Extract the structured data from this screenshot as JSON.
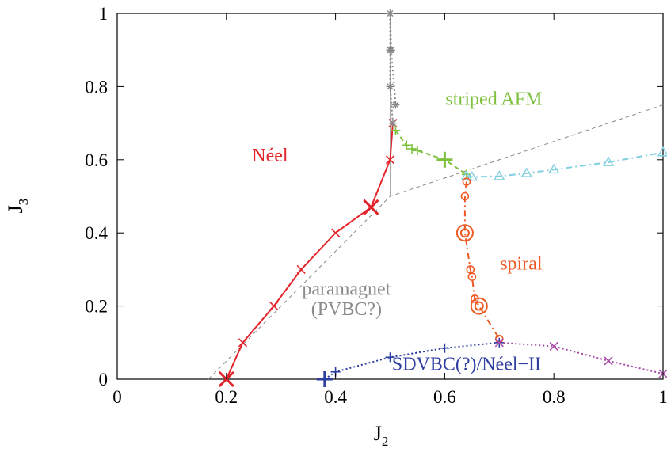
{
  "chart_data": {
    "type": "line",
    "title": "",
    "xlabel": "J",
    "xlabel_sub": "2",
    "ylabel": "J",
    "ylabel_sub": "3",
    "xlim": [
      0,
      1
    ],
    "ylim": [
      0,
      1
    ],
    "xticks": [
      "0",
      "0.2",
      "0.4",
      "0.6",
      "0.8",
      "1"
    ],
    "yticks": [
      "0",
      "0.2",
      "0.4",
      "0.6",
      "0.8",
      "1"
    ],
    "grid": false,
    "region_labels": [
      {
        "text": "Néel",
        "x": 0.28,
        "y": 0.595,
        "color": "#e3242b"
      },
      {
        "text": "striped AFM",
        "x": 0.69,
        "y": 0.75,
        "color": "#7ec13e"
      },
      {
        "text": "spiral",
        "x": 0.74,
        "y": 0.3,
        "color": "#ee5a24"
      },
      {
        "text": "paramagnet",
        "x": 0.42,
        "y": 0.23,
        "color": "#8a8a8a"
      },
      {
        "text": "(PVBC?)",
        "x": 0.42,
        "y": 0.175,
        "color": "#8a8a8a"
      },
      {
        "text": "SDVBC(?)/Néel−II",
        "x": 0.64,
        "y": 0.025,
        "color": "#2e3fa0"
      }
    ],
    "classical_lines": [
      {
        "name": "classical-boundary",
        "x": [
          0.167,
          0.5,
          1.0
        ],
        "y": [
          0.0,
          0.5,
          0.75
        ],
        "color": "#888888",
        "dash": "5,4"
      },
      {
        "name": "classical-vertical",
        "x": [
          0.5,
          0.5
        ],
        "y": [
          0.5,
          1.0
        ],
        "color": "#aaaaaa",
        "dash": ""
      }
    ],
    "series": [
      {
        "name": "neel-boundary",
        "color": "#e3242b",
        "marker": "x",
        "line": "solid",
        "x": [
          0.2,
          0.23,
          0.287,
          0.337,
          0.4,
          0.465,
          0.5,
          0.505
        ],
        "y": [
          0.0,
          0.1,
          0.2,
          0.3,
          0.4,
          0.47,
          0.6,
          0.7
        ],
        "big": [
          true,
          false,
          false,
          false,
          false,
          true,
          false,
          false
        ]
      },
      {
        "name": "striped-upper-boundary",
        "color": "#888888",
        "marker": "star",
        "line": "dotted",
        "x": [
          0.505,
          0.5,
          0.5,
          0.5,
          0.502,
          0.51
        ],
        "y": [
          0.7,
          0.8,
          0.9,
          1.0,
          0.9,
          0.75
        ],
        "big": [
          false,
          false,
          false,
          false,
          false,
          false
        ]
      },
      {
        "name": "striped-spiral-boundary",
        "color": "#7ec13e",
        "marker": "plus",
        "line": "dashed",
        "x": [
          0.51,
          0.53,
          0.54,
          0.55,
          0.6,
          0.64
        ],
        "y": [
          0.68,
          0.64,
          0.63,
          0.625,
          0.6,
          0.56
        ],
        "big": [
          false,
          false,
          false,
          false,
          true,
          false
        ]
      },
      {
        "name": "spiral-striped-boundary",
        "color": "#7fd0e0",
        "marker": "triangle",
        "line": "dashdot",
        "x": [
          0.64,
          0.65,
          0.7,
          0.75,
          0.8,
          0.9,
          1.0
        ],
        "y": [
          0.555,
          0.553,
          0.555,
          0.563,
          0.573,
          0.593,
          0.62
        ],
        "big": [
          false,
          false,
          false,
          false,
          false,
          false,
          false
        ]
      },
      {
        "name": "spiral-boundary",
        "color": "#ee5a24",
        "marker": "circle",
        "line": "dashdot",
        "x": [
          0.64,
          0.637,
          0.637,
          0.647,
          0.65,
          0.655,
          0.663,
          0.7
        ],
        "y": [
          0.54,
          0.5,
          0.4,
          0.3,
          0.28,
          0.22,
          0.2,
          0.11
        ],
        "big": [
          false,
          false,
          true,
          false,
          false,
          false,
          true,
          false
        ]
      },
      {
        "name": "sdvbc-boundary",
        "color": "#2e3fa0",
        "marker": "plus",
        "line": "dotted",
        "x": [
          0.38,
          0.4,
          0.5,
          0.6,
          0.7
        ],
        "y": [
          0.0,
          0.02,
          0.06,
          0.085,
          0.1
        ],
        "big": [
          true,
          false,
          false,
          false,
          false
        ]
      },
      {
        "name": "neel-ii-boundary",
        "color": "#a84aa8",
        "marker": "x",
        "line": "dotted",
        "x": [
          0.7,
          0.8,
          0.9,
          1.0
        ],
        "y": [
          0.1,
          0.09,
          0.05,
          0.015
        ],
        "big": [
          false,
          false,
          false,
          false
        ]
      }
    ]
  }
}
